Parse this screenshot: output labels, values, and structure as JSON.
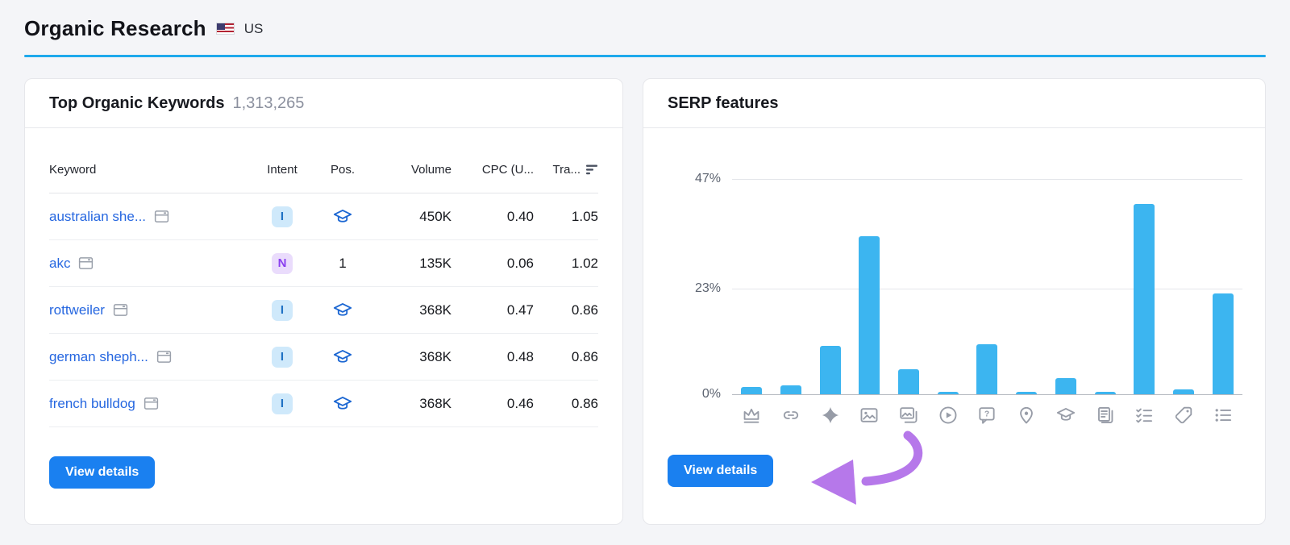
{
  "page": {
    "title": "Organic Research",
    "region": "US"
  },
  "keywords_card": {
    "title": "Top Organic Keywords",
    "count": "1,313,265",
    "columns": [
      "Keyword",
      "Intent",
      "Pos.",
      "Volume",
      "CPC (U...",
      "Tra..."
    ],
    "rows": [
      {
        "keyword": "australian she...",
        "intent": "I",
        "pos": "",
        "pos_icon": "graduation-cap-icon",
        "volume": "450K",
        "cpc": "0.40",
        "traffic": "1.05"
      },
      {
        "keyword": "akc",
        "intent": "N",
        "pos": "1",
        "pos_icon": "",
        "volume": "135K",
        "cpc": "0.06",
        "traffic": "1.02"
      },
      {
        "keyword": "rottweiler",
        "intent": "I",
        "pos": "",
        "pos_icon": "graduation-cap-icon",
        "volume": "368K",
        "cpc": "0.47",
        "traffic": "0.86"
      },
      {
        "keyword": "german sheph...",
        "intent": "I",
        "pos": "",
        "pos_icon": "graduation-cap-icon",
        "volume": "368K",
        "cpc": "0.48",
        "traffic": "0.86"
      },
      {
        "keyword": "french bulldog",
        "intent": "I",
        "pos": "",
        "pos_icon": "graduation-cap-icon",
        "volume": "368K",
        "cpc": "0.46",
        "traffic": "0.86"
      }
    ],
    "view_details_label": "View details",
    "intent_colors": {
      "I": {
        "bg": "#cfe9fb",
        "text": "#1f72c4"
      },
      "N": {
        "bg": "#eadcfc",
        "text": "#8a3ff0"
      }
    }
  },
  "serp_card": {
    "title": "SERP features",
    "view_details_label": "View details"
  },
  "chart_data": {
    "type": "bar",
    "title": "SERP features",
    "categories": [
      "crown-icon",
      "link-icon",
      "sparkle-icon",
      "image-icon",
      "image-stack-icon",
      "video-play-icon",
      "question-bubble-icon",
      "location-pin-icon",
      "graduation-cap-icon",
      "stacked-pages-icon",
      "checklist-icon",
      "tag-icon",
      "bullet-list-icon"
    ],
    "values": [
      1.5,
      2,
      10.5,
      34.5,
      5.5,
      0.5,
      11,
      0.5,
      3.5,
      0.5,
      41.5,
      1,
      22
    ],
    "yticks": [
      "47%",
      "23%",
      "0%"
    ],
    "ylim": [
      0,
      47
    ],
    "xlabel": "",
    "ylabel": "",
    "grid": "horizontal",
    "legend": "none",
    "bar_color": "#3cb5f0"
  },
  "colors": {
    "accent_blue": "#1a80f0",
    "header_rule": "#1ea9ec",
    "bar_blue": "#3cb5f0",
    "link_blue": "#2667e0",
    "pos_icon_blue": "#1b66d2",
    "arrow_purple": "#b678ea",
    "page_bg": "#f4f5f8"
  }
}
